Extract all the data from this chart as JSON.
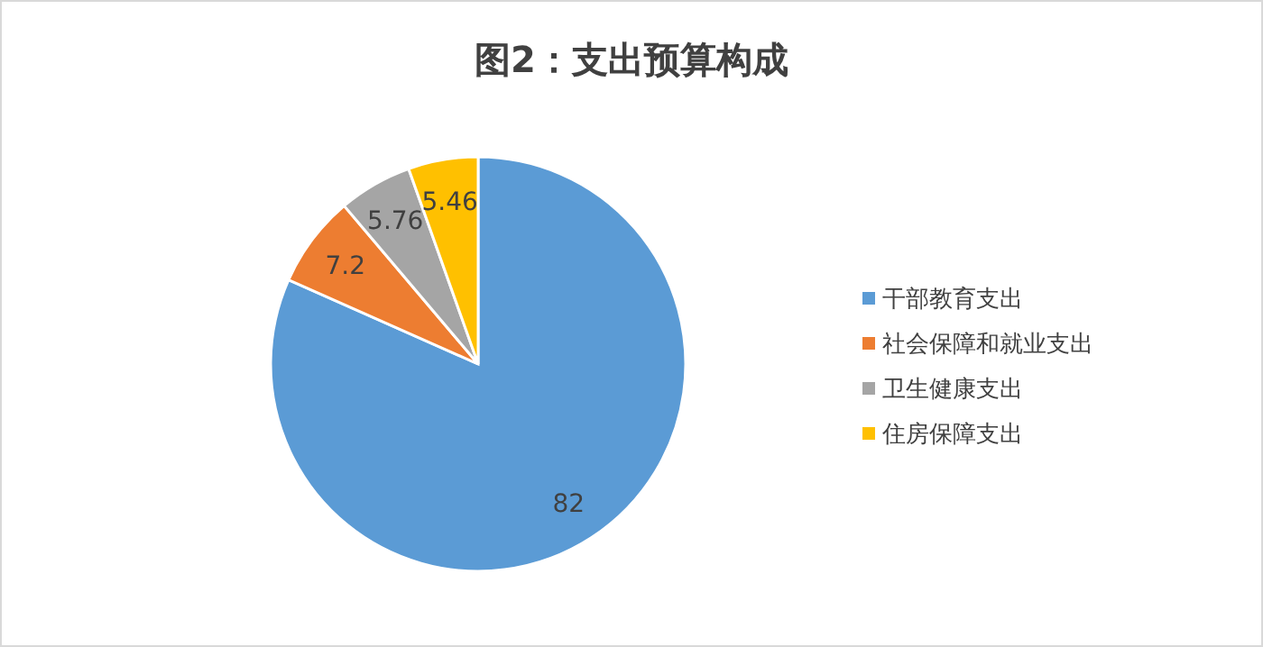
{
  "chart_data": {
    "type": "pie",
    "title": "图2：支出预算构成",
    "categories": [
      "干部教育支出",
      "社会保障和就业支出",
      "卫生健康支出",
      "住房保障支出"
    ],
    "values": [
      82,
      7.2,
      5.76,
      5.46
    ],
    "colors": [
      "#5b9bd5",
      "#ed7d31",
      "#a5a5a5",
      "#ffc000"
    ],
    "data_labels": true,
    "legend": "right"
  }
}
